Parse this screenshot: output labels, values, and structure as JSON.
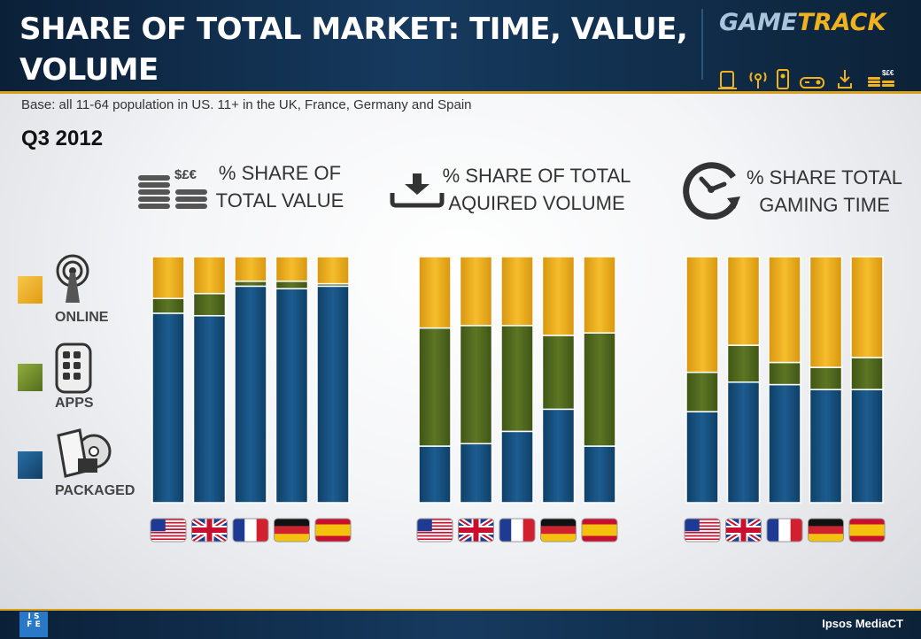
{
  "header": {
    "title_line1": "SHARE OF TOTAL MARKET: TIME, VALUE,",
    "title_line2": "VOLUME",
    "logo_left": "GAME",
    "logo_right": "TRACK"
  },
  "subtitle": "Base: all 11-64 population in US. 11+ in the UK, France, Germany and Spain",
  "period": "Q3 2012",
  "footer": {
    "left_logo": "ISFE",
    "right_text": "Ipsos MediaCT"
  },
  "legend": [
    {
      "label": "ONLINE",
      "color": "#f0b21e",
      "icon": "online-tower-icon"
    },
    {
      "label": "APPS",
      "color": "#6d8f2a",
      "icon": "smartphone-apps-icon"
    },
    {
      "label": "PACKAGED",
      "color": "#1a5a8f",
      "icon": "packaged-disc-icon"
    }
  ],
  "colors": {
    "online": "#f0b21e",
    "apps": "#55701f",
    "packaged": "#15507f"
  },
  "chart_data": [
    {
      "type": "bar",
      "title_line1": "% SHARE OF",
      "title_line2": "TOTAL VALUE",
      "icon": "coins-icon",
      "icon_text": "$£€",
      "categories": [
        "US",
        "UK",
        "France",
        "Germany",
        "Spain"
      ],
      "series": [
        {
          "name": "PACKAGED",
          "values": [
            77,
            76,
            88,
            87,
            88
          ]
        },
        {
          "name": "APPS",
          "values": [
            6,
            9,
            2,
            3,
            1
          ]
        },
        {
          "name": "ONLINE",
          "values": [
            17,
            15,
            10,
            10,
            11
          ]
        }
      ]
    },
    {
      "type": "bar",
      "title_line1": "% SHARE OF TOTAL",
      "title_line2": "AQUIRED VOLUME",
      "icon": "download-tray-icon",
      "categories": [
        "US",
        "UK",
        "France",
        "Germany",
        "Spain"
      ],
      "series": [
        {
          "name": "PACKAGED",
          "values": [
            23,
            24,
            29,
            38,
            23
          ]
        },
        {
          "name": "APPS",
          "values": [
            48,
            48,
            43,
            30,
            46
          ]
        },
        {
          "name": "ONLINE",
          "values": [
            29,
            28,
            28,
            32,
            31
          ]
        }
      ]
    },
    {
      "type": "bar",
      "title_line1": "% SHARE TOTAL",
      "title_line2": "GAMING TIME",
      "icon": "clock-icon",
      "categories": [
        "US",
        "UK",
        "France",
        "Germany",
        "Spain"
      ],
      "series": [
        {
          "name": "PACKAGED",
          "values": [
            37,
            49,
            48,
            46,
            46
          ]
        },
        {
          "name": "APPS",
          "values": [
            16,
            15,
            9,
            9,
            13
          ]
        },
        {
          "name": "ONLINE",
          "values": [
            47,
            36,
            43,
            45,
            41
          ]
        }
      ]
    }
  ]
}
